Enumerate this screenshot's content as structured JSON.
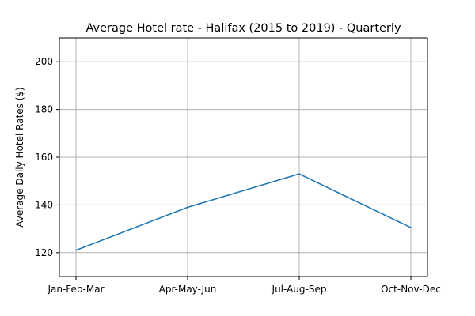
{
  "chart_data": {
    "type": "line",
    "title": "Average Hotel rate - Halifax (2015 to 2019) - Quarterly",
    "xlabel": "",
    "ylabel": "Average Daily Hotel Rates ($)",
    "categories": [
      "Jan-Feb-Mar",
      "Apr-May-Jun",
      "Jul-Aug-Sep",
      "Oct-Nov-Dec"
    ],
    "series": [
      {
        "values": [
          121.0,
          139.0,
          153.0,
          130.5
        ]
      }
    ],
    "ylim": [
      110,
      210
    ],
    "yticks": [
      120,
      140,
      160,
      180,
      200
    ],
    "grid": true,
    "legend": "none",
    "colors": {
      "line": "#1f77b4",
      "grid": "#b0b0b0",
      "axes": "#000000"
    }
  }
}
